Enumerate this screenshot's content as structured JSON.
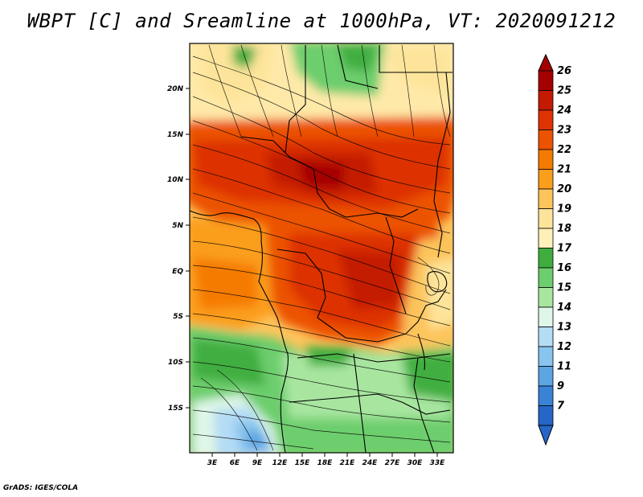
{
  "title": "WBPT [C] and Sreamline at 1000hPa, VT: 2020091212",
  "footer": "GrADS: IGES/COLA",
  "map": {
    "lat_ticks": [
      "20N",
      "15N",
      "10N",
      "5N",
      "EQ",
      "5S",
      "10S",
      "15S"
    ],
    "lon_ticks": [
      "3E",
      "6E",
      "9E",
      "12E",
      "15E",
      "18E",
      "21E",
      "24E",
      "27E",
      "30E",
      "33E"
    ]
  },
  "colorbar": {
    "labels": [
      "26",
      "25",
      "24",
      "23",
      "22",
      "21",
      "20",
      "19",
      "18",
      "17",
      "16",
      "15",
      "14",
      "13",
      "12",
      "11",
      "9",
      "7"
    ],
    "colors": [
      "#a50000",
      "#c41a00",
      "#dd3300",
      "#ec5200",
      "#f57a00",
      "#fb9e1c",
      "#fdc45c",
      "#fde49a",
      "#ffefb8",
      "#3fae3f",
      "#6dce6d",
      "#a8e6a0",
      "#dff7e8",
      "#b4dcf5",
      "#88c4ee",
      "#5da4e3",
      "#3a82d6",
      "#2566c8"
    ],
    "top_arrow_color": "#a50000",
    "bottom_arrow_color": "#2566c8"
  }
}
